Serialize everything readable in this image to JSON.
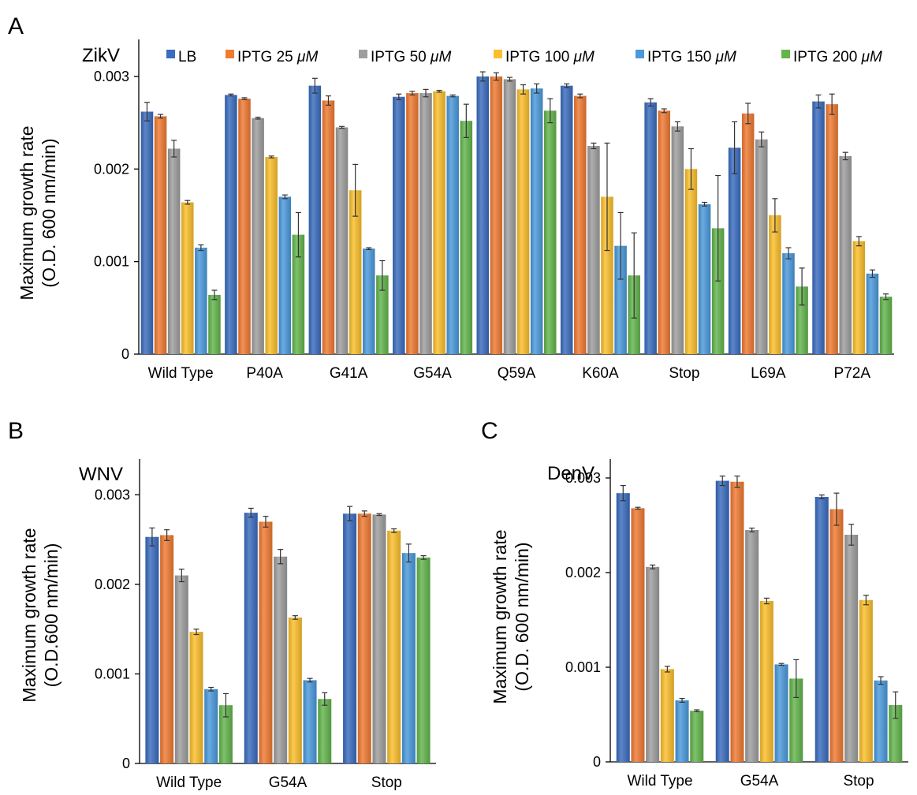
{
  "series": [
    "LB",
    "IPTG 25 μM",
    "IPTG 50 μM",
    "IPTG 100 μM",
    "IPTG 150 μM",
    "IPTG 200 μM"
  ],
  "legend": [
    {
      "prefix": "LB",
      "unit": ""
    },
    {
      "prefix": "IPTG 25 ",
      "unit": "μM"
    },
    {
      "prefix": "IPTG 50 ",
      "unit": "μM"
    },
    {
      "prefix": "IPTG 100 ",
      "unit": "μM"
    },
    {
      "prefix": "IPTG 150 ",
      "unit": "μM"
    },
    {
      "prefix": "IPTG 200 ",
      "unit": "μM"
    }
  ],
  "colors": {
    "LB": "#3a6cbf",
    "IPTG 25 μM": "#f07a32",
    "IPTG 50 μM": "#9e9e9e",
    "IPTG 100 μM": "#fbbf2a",
    "IPTG 150 μM": "#4a99dc",
    "IPTG 200 μM": "#63b54c"
  },
  "chart_data": [
    {
      "panel": "A",
      "virus": "ZikV",
      "type": "bar",
      "ylabel_line1": "Maximum growth rate",
      "ylabel_line2": "(O.D. 600 nm/min)",
      "ylim": [
        0,
        0.0034
      ],
      "yticks": [
        0,
        0.001,
        0.002,
        0.003
      ],
      "ytick_labels": [
        "0",
        "0.001",
        "0.002",
        "0.003"
      ],
      "categories": [
        "Wild Type",
        "P40A",
        "G41A",
        "G54A",
        "Q59A",
        "K60A",
        "Stop",
        "L69A",
        "P72A"
      ],
      "series": [
        {
          "name": "LB",
          "values": [
            0.00262,
            0.0028,
            0.0029,
            0.00278,
            0.003,
            0.0029,
            0.00272,
            0.00223,
            0.00273
          ],
          "errors": [
            0.0001,
            1e-05,
            8e-05,
            3e-05,
            5e-05,
            2e-05,
            4e-05,
            0.00028,
            7e-05
          ]
        },
        {
          "name": "IPTG 25 μM",
          "values": [
            0.00257,
            0.00276,
            0.00274,
            0.00282,
            0.003,
            0.00279,
            0.00263,
            0.0026,
            0.0027
          ],
          "errors": [
            2e-05,
            1e-05,
            5e-05,
            2e-05,
            4e-05,
            2e-05,
            2e-05,
            0.00011,
            0.00011
          ]
        },
        {
          "name": "IPTG 50 μM",
          "values": [
            0.00222,
            0.00255,
            0.00245,
            0.00282,
            0.00297,
            0.00225,
            0.00246,
            0.00232,
            0.00214
          ],
          "errors": [
            9e-05,
            1e-05,
            1e-05,
            4e-05,
            2e-05,
            3e-05,
            5e-05,
            8e-05,
            4e-05
          ]
        },
        {
          "name": "IPTG 100 μM",
          "values": [
            0.00164,
            0.00213,
            0.00177,
            0.00284,
            0.00286,
            0.0017,
            0.002,
            0.0015,
            0.00122
          ],
          "errors": [
            2e-05,
            1e-05,
            0.00028,
            1e-05,
            5e-05,
            0.00058,
            0.00022,
            0.00018,
            5e-05
          ]
        },
        {
          "name": "IPTG 150 μM",
          "values": [
            0.00115,
            0.0017,
            0.00114,
            0.00279,
            0.00287,
            0.00117,
            0.00162,
            0.00109,
            0.00087
          ],
          "errors": [
            3e-05,
            2e-05,
            1e-05,
            1e-05,
            5e-05,
            0.00036,
            2e-05,
            6e-05,
            4e-05
          ]
        },
        {
          "name": "IPTG 200 μM",
          "values": [
            0.00064,
            0.00129,
            0.00085,
            0.00252,
            0.00263,
            0.00085,
            0.00136,
            0.00073,
            0.00062
          ],
          "errors": [
            5e-05,
            0.00024,
            0.00016,
            0.00018,
            0.00013,
            0.00046,
            0.00057,
            0.0002,
            3e-05
          ]
        }
      ]
    },
    {
      "panel": "B",
      "virus": "WNV",
      "type": "bar",
      "ylabel_line1": "Maximum growth rate",
      "ylabel_line2": "(O.D.600 nm/min)",
      "ylim": [
        0,
        0.0034
      ],
      "yticks": [
        0,
        0.001,
        0.002,
        0.003
      ],
      "ytick_labels": [
        "0",
        "0.001",
        "0.002",
        "0.003"
      ],
      "categories": [
        "Wild Type",
        "G54A",
        "Stop"
      ],
      "series": [
        {
          "name": "LB",
          "values": [
            0.00253,
            0.0028,
            0.00279
          ],
          "errors": [
            0.0001,
            5e-05,
            8e-05
          ]
        },
        {
          "name": "IPTG 25 μM",
          "values": [
            0.00255,
            0.0027,
            0.00279
          ],
          "errors": [
            6e-05,
            6e-05,
            3e-05
          ]
        },
        {
          "name": "IPTG 50 μM",
          "values": [
            0.0021,
            0.00231,
            0.00278
          ],
          "errors": [
            7e-05,
            8e-05,
            1e-05
          ]
        },
        {
          "name": "IPTG 100 μM",
          "values": [
            0.00147,
            0.00163,
            0.0026
          ],
          "errors": [
            3e-05,
            2e-05,
            2e-05
          ]
        },
        {
          "name": "IPTG 150 μM",
          "values": [
            0.00083,
            0.00093,
            0.00235
          ],
          "errors": [
            2e-05,
            2e-05,
            0.0001
          ]
        },
        {
          "name": "IPTG 200 μM",
          "values": [
            0.00065,
            0.00072,
            0.0023
          ],
          "errors": [
            0.00013,
            7e-05,
            2e-05
          ]
        }
      ]
    },
    {
      "panel": "C",
      "virus": "DenV",
      "type": "bar",
      "ylabel_line1": "Maximum growth rate",
      "ylabel_line2": "(O.D. 600 nm/min)",
      "ylim": [
        0,
        0.0032
      ],
      "yticks": [
        0,
        0.001,
        0.002,
        0.003
      ],
      "ytick_labels": [
        "0",
        "0.001",
        "0.002",
        "0.003"
      ],
      "categories": [
        "Wild Type",
        "G54A",
        "Stop"
      ],
      "series": [
        {
          "name": "LB",
          "values": [
            0.00284,
            0.00297,
            0.0028
          ],
          "errors": [
            8e-05,
            5e-05,
            2e-05
          ]
        },
        {
          "name": "IPTG 25 μM",
          "values": [
            0.00268,
            0.00296,
            0.00267
          ],
          "errors": [
            1e-05,
            6e-05,
            0.00017
          ]
        },
        {
          "name": "IPTG 50 μM",
          "values": [
            0.00206,
            0.00245,
            0.0024
          ],
          "errors": [
            2e-05,
            2e-05,
            0.00011
          ]
        },
        {
          "name": "IPTG 100 μM",
          "values": [
            0.00098,
            0.0017,
            0.00171
          ],
          "errors": [
            3e-05,
            3e-05,
            5e-05
          ]
        },
        {
          "name": "IPTG 150 μM",
          "values": [
            0.00065,
            0.00103,
            0.00086
          ],
          "errors": [
            2e-05,
            1e-05,
            4e-05
          ]
        },
        {
          "name": "IPTG 200 μM",
          "values": [
            0.00054,
            0.00088,
            0.0006
          ],
          "errors": [
            1e-05,
            0.0002,
            0.00014
          ]
        }
      ]
    }
  ]
}
